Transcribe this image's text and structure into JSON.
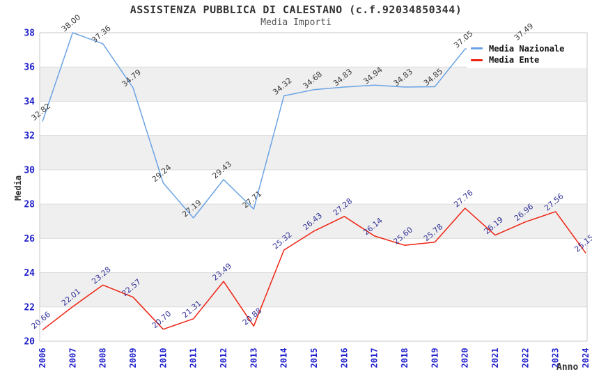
{
  "header": {
    "title": "ASSISTENZA PUBBLICA DI CALESTANO (c.f.92034850344)",
    "subtitle": "Media Importi"
  },
  "axes": {
    "xlabel": "Anno",
    "ylabel": "Media"
  },
  "legend": {
    "items": [
      {
        "label": "Media Nazionale",
        "color": "#6aa3e4"
      },
      {
        "label": "Media Ente",
        "color": "#ee2211"
      }
    ]
  },
  "chart_data": {
    "type": "line",
    "title": "ASSISTENZA PUBBLICA DI CALESTANO (c.f.92034850344)",
    "subtitle": "Media Importi",
    "xlabel": "Anno",
    "ylabel": "Media",
    "ylim": [
      20,
      38
    ],
    "ytick_step": 2,
    "grid": true,
    "band_color": "#efefef",
    "gridline_color": "#dcdcdc",
    "border_color": "#c8c8c8",
    "tick_label_color": "#2222cc",
    "legend_position": "top-right",
    "x": [
      2006,
      2007,
      2008,
      2009,
      2010,
      2011,
      2012,
      2013,
      2014,
      2015,
      2016,
      2017,
      2018,
      2019,
      2020,
      2021,
      2022,
      2023,
      2024
    ],
    "series": [
      {
        "name": "Media Nazionale",
        "color": "#6aa3e4",
        "label_color": "#3a3a3a",
        "values": [
          32.82,
          38.0,
          37.36,
          34.79,
          29.24,
          27.19,
          29.43,
          27.71,
          34.32,
          34.68,
          34.83,
          34.94,
          34.83,
          34.85,
          37.05,
          null,
          37.49,
          null,
          null
        ]
      },
      {
        "name": "Media Ente",
        "color": "#ee2211",
        "label_color": "#333399",
        "values": [
          20.66,
          22.01,
          23.28,
          22.57,
          20.7,
          21.31,
          23.49,
          20.88,
          25.32,
          26.43,
          27.28,
          26.14,
          25.6,
          25.78,
          27.76,
          26.19,
          26.96,
          27.56,
          25.15
        ]
      }
    ]
  }
}
